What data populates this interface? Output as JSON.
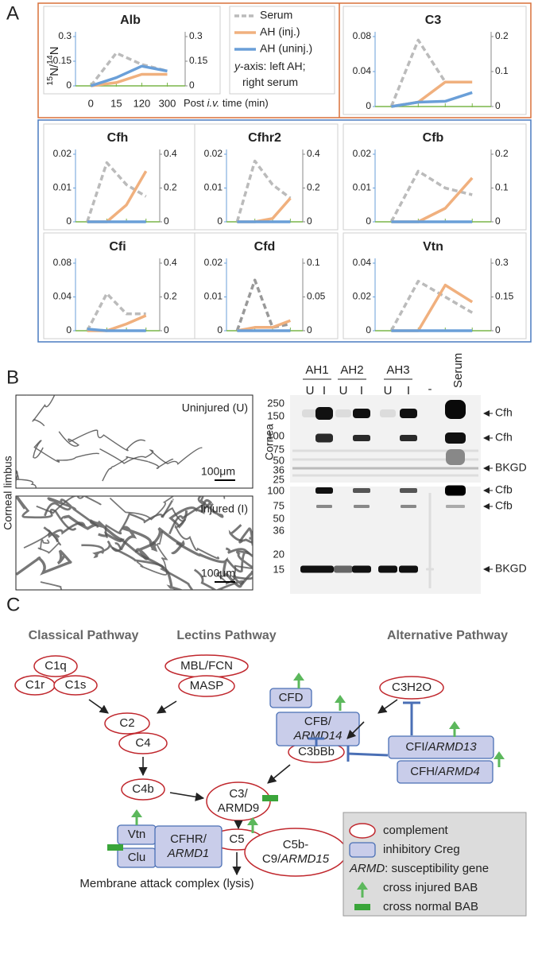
{
  "panel_labels": [
    "A",
    "B",
    "C"
  ],
  "chart_data": [
    {
      "type": "line",
      "title": "Alb",
      "categories": [
        "0",
        "15",
        "120",
        "300"
      ],
      "x_label": [
        {
          "text": "Post "
        },
        {
          "text": "i.v.",
          "italic": true
        },
        {
          "text": " time (min)"
        }
      ],
      "y_label": [
        {
          "text": "15",
          "sup": true
        },
        {
          "text": "N/"
        },
        {
          "text": "14",
          "sup": true
        },
        {
          "text": "N"
        }
      ],
      "ylim": [
        0,
        0.3
      ],
      "yticks": [
        0,
        0.15,
        0.3
      ],
      "y2lim": [
        0,
        0.3
      ],
      "y2ticks": [
        0,
        0.15,
        0.3
      ],
      "series": [
        {
          "color": "#bbbbbb",
          "dash": true,
          "axis": "y2",
          "values": [
            0,
            0.2,
            0.13,
            0.09
          ]
        },
        {
          "color": "#f0b07e",
          "values": [
            0,
            0.02,
            0.07,
            0.07
          ]
        },
        {
          "color": "#6a9fd8",
          "values": [
            0,
            0.05,
            0.12,
            0.09
          ]
        }
      ]
    },
    {
      "type": "line",
      "title": "C3",
      "categories": [
        null,
        null,
        null,
        null
      ],
      "ylim": [
        0,
        0.08
      ],
      "yticks": [
        0,
        0.04,
        0.08
      ],
      "y2lim": [
        0,
        0.2
      ],
      "y2ticks": [
        0,
        0.1,
        0.2
      ],
      "series": [
        {
          "color": "#bbbbbb",
          "dash": true,
          "axis": "y2",
          "values": [
            0,
            0.19,
            0.07,
            0.07
          ]
        },
        {
          "color": "#f0b07e",
          "values": [
            0,
            0.005,
            0.028,
            0.028
          ]
        },
        {
          "color": "#6a9fd8",
          "values": [
            0,
            0.005,
            0.006,
            0.016
          ]
        }
      ]
    },
    {
      "type": "line",
      "title": "Cfh",
      "categories": [
        null,
        null,
        null,
        null
      ],
      "ylim": [
        0,
        0.02
      ],
      "yticks": [
        0,
        0.01,
        0.02
      ],
      "y2lim": [
        0,
        0.4
      ],
      "y2ticks": [
        0,
        0.2,
        0.4
      ],
      "series": [
        {
          "color": "#bbbbbb",
          "dash": true,
          "axis": "y2",
          "values": [
            0,
            0.35,
            0.22,
            0.15
          ]
        },
        {
          "color": "#f0b07e",
          "values": [
            0,
            0,
            0.005,
            0.015
          ]
        },
        {
          "color": "#6a9fd8",
          "values": [
            0,
            0,
            0,
            0
          ]
        }
      ]
    },
    {
      "type": "line",
      "title": "Cfhr2",
      "categories": [
        null,
        null,
        null,
        null
      ],
      "ylim": [
        0,
        0.02
      ],
      "yticks": [
        0,
        0.01,
        0.02
      ],
      "y2lim": [
        0,
        0.4
      ],
      "y2ticks": [
        0,
        0.2,
        0.4
      ],
      "series": [
        {
          "color": "#bbbbbb",
          "dash": true,
          "axis": "y2",
          "values": [
            0,
            0.36,
            0.22,
            0.14
          ]
        },
        {
          "color": "#f0b07e",
          "values": [
            0,
            0,
            0.001,
            0.007
          ]
        },
        {
          "color": "#6a9fd8",
          "values": [
            0,
            0,
            0,
            0
          ]
        }
      ]
    },
    {
      "type": "line",
      "title": "Cfb",
      "categories": [
        null,
        null,
        null,
        null
      ],
      "ylim": [
        0,
        0.02
      ],
      "yticks": [
        0,
        0.01,
        0.02
      ],
      "y2lim": [
        0,
        0.2
      ],
      "y2ticks": [
        0,
        0.1,
        0.2
      ],
      "series": [
        {
          "color": "#bbbbbb",
          "dash": true,
          "axis": "y2",
          "values": [
            0,
            0.15,
            0.1,
            0.08
          ]
        },
        {
          "color": "#f0b07e",
          "values": [
            0,
            0,
            0.004,
            0.013
          ]
        },
        {
          "color": "#6a9fd8",
          "values": [
            0,
            0,
            0,
            0
          ]
        }
      ]
    },
    {
      "type": "line",
      "title": "Cfi",
      "categories": [
        null,
        null,
        null,
        null
      ],
      "ylim": [
        0,
        0.08
      ],
      "yticks": [
        0,
        0.04,
        0.08
      ],
      "y2lim": [
        0,
        0.4
      ],
      "y2ticks": [
        0,
        0.2,
        0.4
      ],
      "series": [
        {
          "color": "#bbbbbb",
          "dash": true,
          "axis": "y2",
          "values": [
            0,
            0.22,
            0.1,
            0.1
          ]
        },
        {
          "color": "#f0b07e",
          "values": [
            0,
            0,
            0.008,
            0.018
          ]
        },
        {
          "color": "#6a9fd8",
          "values": [
            0.002,
            0,
            0,
            0
          ]
        }
      ]
    },
    {
      "type": "line",
      "title": "Cfd",
      "categories": [
        null,
        null,
        null,
        null
      ],
      "ylim": [
        0,
        0.02
      ],
      "yticks": [
        0,
        0.01,
        0.02
      ],
      "y2lim": [
        0,
        0.1
      ],
      "y2ticks": [
        0,
        0.05,
        0.1
      ],
      "series": [
        {
          "color": "#999999",
          "dash": true,
          "axis": "y2",
          "values": [
            0,
            0.075,
            0.005,
            0.01
          ]
        },
        {
          "color": "#f0b07e",
          "values": [
            0,
            0.001,
            0.001,
            0.003
          ]
        },
        {
          "color": "#6a9fd8",
          "values": [
            0,
            0,
            0,
            0
          ]
        }
      ]
    },
    {
      "type": "line",
      "title": "Vtn",
      "categories": [
        null,
        null,
        null,
        null
      ],
      "ylim": [
        0,
        0.04
      ],
      "yticks": [
        0,
        0.02,
        0.04
      ],
      "y2lim": [
        0,
        0.3
      ],
      "y2ticks": [
        0,
        0.15,
        0.3
      ],
      "series": [
        {
          "color": "#bbbbbb",
          "dash": true,
          "axis": "y2",
          "values": [
            0,
            0.22,
            0.15,
            0.08
          ]
        },
        {
          "color": "#f0b07e",
          "values": [
            0,
            0,
            0.027,
            0.017
          ]
        },
        {
          "color": "#6a9fd8",
          "values": [
            0,
            0,
            0,
            0
          ]
        }
      ]
    }
  ],
  "legend": {
    "entries": [
      {
        "name": "Serum",
        "color": "#bbbbbb",
        "dash": true
      },
      {
        "name": "AH (inj.)",
        "color": "#f0b07e"
      },
      {
        "name": "AH (uninj.)",
        "color": "#6a9fd8"
      }
    ],
    "note_lines": [
      [
        {
          "text": "y",
          "italic": true
        },
        {
          "text": "-axis: left AH;"
        }
      ],
      [
        {
          "text": "right serum"
        }
      ]
    ]
  },
  "blot": {
    "images": [
      {
        "label": "Uninjured (U)",
        "scale": "100μm"
      },
      {
        "label": "Injured (I)",
        "scale": "100μm"
      }
    ],
    "side_label": "Corneal limbus",
    "blot_side_label": "Cornea",
    "groups": [
      "AH1",
      "AH2",
      "AH3"
    ],
    "lane_labels": [
      "U",
      "I",
      "U",
      "I",
      "U",
      "I"
    ],
    "neg": "-",
    "serum": "Serum",
    "top": {
      "mw": [
        250,
        150,
        100,
        75,
        50,
        36,
        25
      ],
      "bands": [
        "Cfh",
        "Cfh",
        "BKGD"
      ]
    },
    "bottom": {
      "mw": [
        100,
        75,
        50,
        36,
        20,
        15
      ],
      "bands": [
        "Cfb",
        "Cfb",
        "BKGD"
      ]
    }
  },
  "diagram": {
    "headings": [
      "Classical Pathway",
      "Lectins Pathway",
      "Alternative Pathway"
    ],
    "nodes": [
      {
        "kind": "complement",
        "parts": [
          {
            "text": "C1q"
          }
        ]
      },
      {
        "kind": "complement",
        "parts": [
          {
            "text": "C1r"
          }
        ]
      },
      {
        "kind": "complement",
        "parts": [
          {
            "text": "C1s"
          }
        ]
      },
      {
        "kind": "complement",
        "parts": [
          {
            "text": "MBL/FCN"
          }
        ]
      },
      {
        "kind": "complement",
        "parts": [
          {
            "text": "MASP"
          }
        ]
      },
      {
        "kind": "complement",
        "parts": [
          {
            "text": "C2"
          }
        ]
      },
      {
        "kind": "complement",
        "parts": [
          {
            "text": "C4"
          }
        ]
      },
      {
        "kind": "complement",
        "parts": [
          {
            "text": "C4b"
          }
        ]
      },
      {
        "kind": "complement",
        "parts": [
          {
            "text": "C3/"
          },
          {
            "text": "ARMD9"
          }
        ]
      },
      {
        "kind": "complement",
        "parts": [
          {
            "text": "C3bBb"
          }
        ]
      },
      {
        "kind": "complement",
        "parts": [
          {
            "text": "C3H2O"
          }
        ]
      },
      {
        "kind": "creg",
        "parts": [
          {
            "text": "CFD"
          }
        ]
      },
      {
        "kind": "creg",
        "parts": [
          {
            "text": "CFB/"
          },
          {
            "text": "ARMD14",
            "italic": true
          }
        ]
      },
      {
        "kind": "creg",
        "parts": [
          {
            "text": "CFI/"
          },
          {
            "text": "ARMD13",
            "italic": true
          }
        ]
      },
      {
        "kind": "creg",
        "parts": [
          {
            "text": "CFH/"
          },
          {
            "text": "ARMD4",
            "italic": true
          }
        ]
      },
      {
        "kind": "complement",
        "parts": [
          {
            "text": "C5"
          }
        ]
      },
      {
        "kind": "complement",
        "parts": [
          {
            "text": "C5b-"
          },
          {
            "text": "C9/"
          },
          {
            "text": "ARMD15",
            "italic": true
          }
        ]
      },
      {
        "kind": "creg",
        "parts": [
          {
            "text": "Vtn"
          }
        ]
      },
      {
        "kind": "creg",
        "parts": [
          {
            "text": "Clu"
          }
        ]
      },
      {
        "kind": "creg",
        "parts": [
          {
            "text": "CFHR/"
          },
          {
            "text": "ARMD1",
            "italic": true
          }
        ]
      }
    ],
    "footer": "Membrane attack complex (lysis)",
    "legend": [
      {
        "kind": "complement",
        "parts": [
          {
            "text": "complement"
          }
        ]
      },
      {
        "kind": "creg",
        "parts": [
          {
            "text": "inhibitory Creg"
          }
        ]
      },
      {
        "kind": "gene",
        "parts": [
          {
            "text": "ARMD",
            "italic": true
          },
          {
            "text": ": susceptibility gene"
          }
        ]
      },
      {
        "kind": "injured",
        "parts": [
          {
            "text": "cross injured BAB"
          }
        ]
      },
      {
        "kind": "normal",
        "parts": [
          {
            "text": "cross normal BAB"
          }
        ]
      }
    ]
  }
}
